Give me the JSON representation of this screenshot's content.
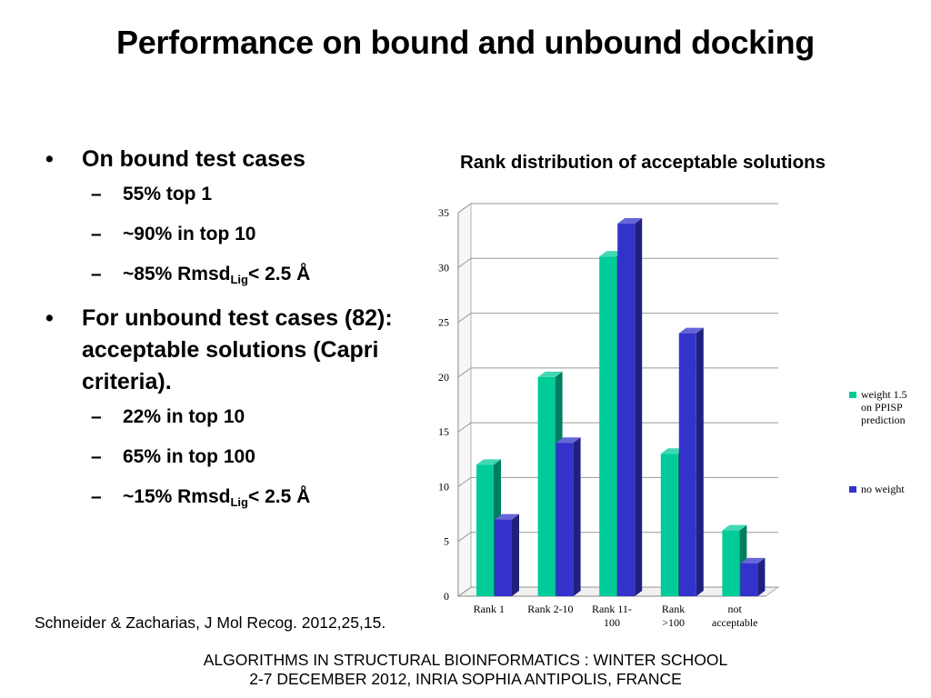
{
  "slide": {
    "title": "Performance on bound and unbound docking",
    "bullets": [
      {
        "marker": "•",
        "text": "On bound test cases",
        "sub": [
          {
            "marker": "–",
            "text": "55% top 1"
          },
          {
            "marker": "–",
            "text": "~90% in top 10"
          },
          {
            "marker": "–",
            "pre": "~85% Rmsd",
            "subscript": "Lig",
            "post": "< 2.5 Å"
          }
        ]
      },
      {
        "marker": "•",
        "text": "For unbound test cases (82): acceptable solutions (Capri criteria).",
        "sub": [
          {
            "marker": "–",
            "text": "22% in top 10"
          },
          {
            "marker": "–",
            "text": "65% in top 100"
          },
          {
            "marker": "–",
            "pre": "~15% Rmsd",
            "subscript": "Lig",
            "post": "< 2.5 Å"
          }
        ]
      }
    ],
    "citation": "Schneider & Zacharias, J Mol Recog. 2012,25,15.",
    "footer_line1": "ALGORITHMS IN STRUCTURAL BIOINFORMATICS : WINTER SCHOOL",
    "footer_line2": "2-7 DECEMBER 2012, INRIA SOPHIA ANTIPOLIS, FRANCE"
  },
  "chart_data": {
    "type": "bar",
    "title": "Rank distribution of acceptable solutions",
    "categories": [
      [
        "Rank 1"
      ],
      [
        "Rank 2-10"
      ],
      [
        "Rank 11-",
        "100"
      ],
      [
        "Rank",
        ">100"
      ],
      [
        "not",
        "acceptable"
      ]
    ],
    "series": [
      {
        "name": [
          "weight 1.5",
          "on PPISP",
          "prediction"
        ],
        "values": [
          12,
          20,
          31,
          13,
          6
        ],
        "color": "#00cc99"
      },
      {
        "name": [
          "no weight"
        ],
        "values": [
          7,
          14,
          34,
          24,
          3
        ],
        "color": "#3333cc"
      }
    ],
    "ylim": [
      0,
      35
    ],
    "yticks": [
      0,
      5,
      10,
      15,
      20,
      25,
      30,
      35
    ],
    "grid": true,
    "legend_position": "right"
  }
}
